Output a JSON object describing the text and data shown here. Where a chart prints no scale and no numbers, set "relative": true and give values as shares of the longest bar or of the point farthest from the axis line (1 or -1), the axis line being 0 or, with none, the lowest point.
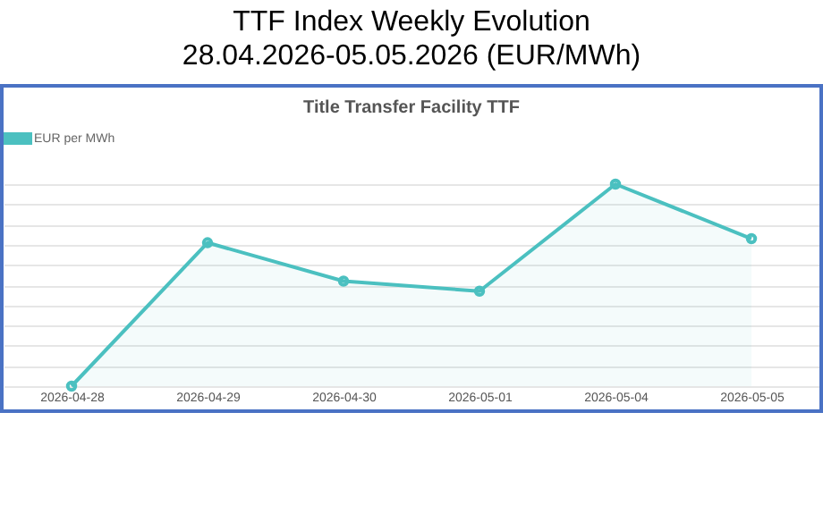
{
  "chart_data": {
    "type": "area",
    "title": "TTF Index Weekly Evolution\n28.04.2026-05.05.2026 (EUR/MWh)",
    "subtitle": "Title Transfer Facility TTF",
    "categories": [
      "2026-04-28",
      "2026-04-29",
      "2026-04-30",
      "2026-05-01",
      "2026-05-04",
      "2026-05-05"
    ],
    "series": [
      {
        "name": "EUR per MWh",
        "color": "#4bc0c0",
        "values": [
          0,
          0.71,
          0.52,
          0.47,
          1,
          0.73
        ]
      }
    ],
    "relative": true,
    "grid": "y",
    "legend": "top",
    "marker": "circle"
  }
}
